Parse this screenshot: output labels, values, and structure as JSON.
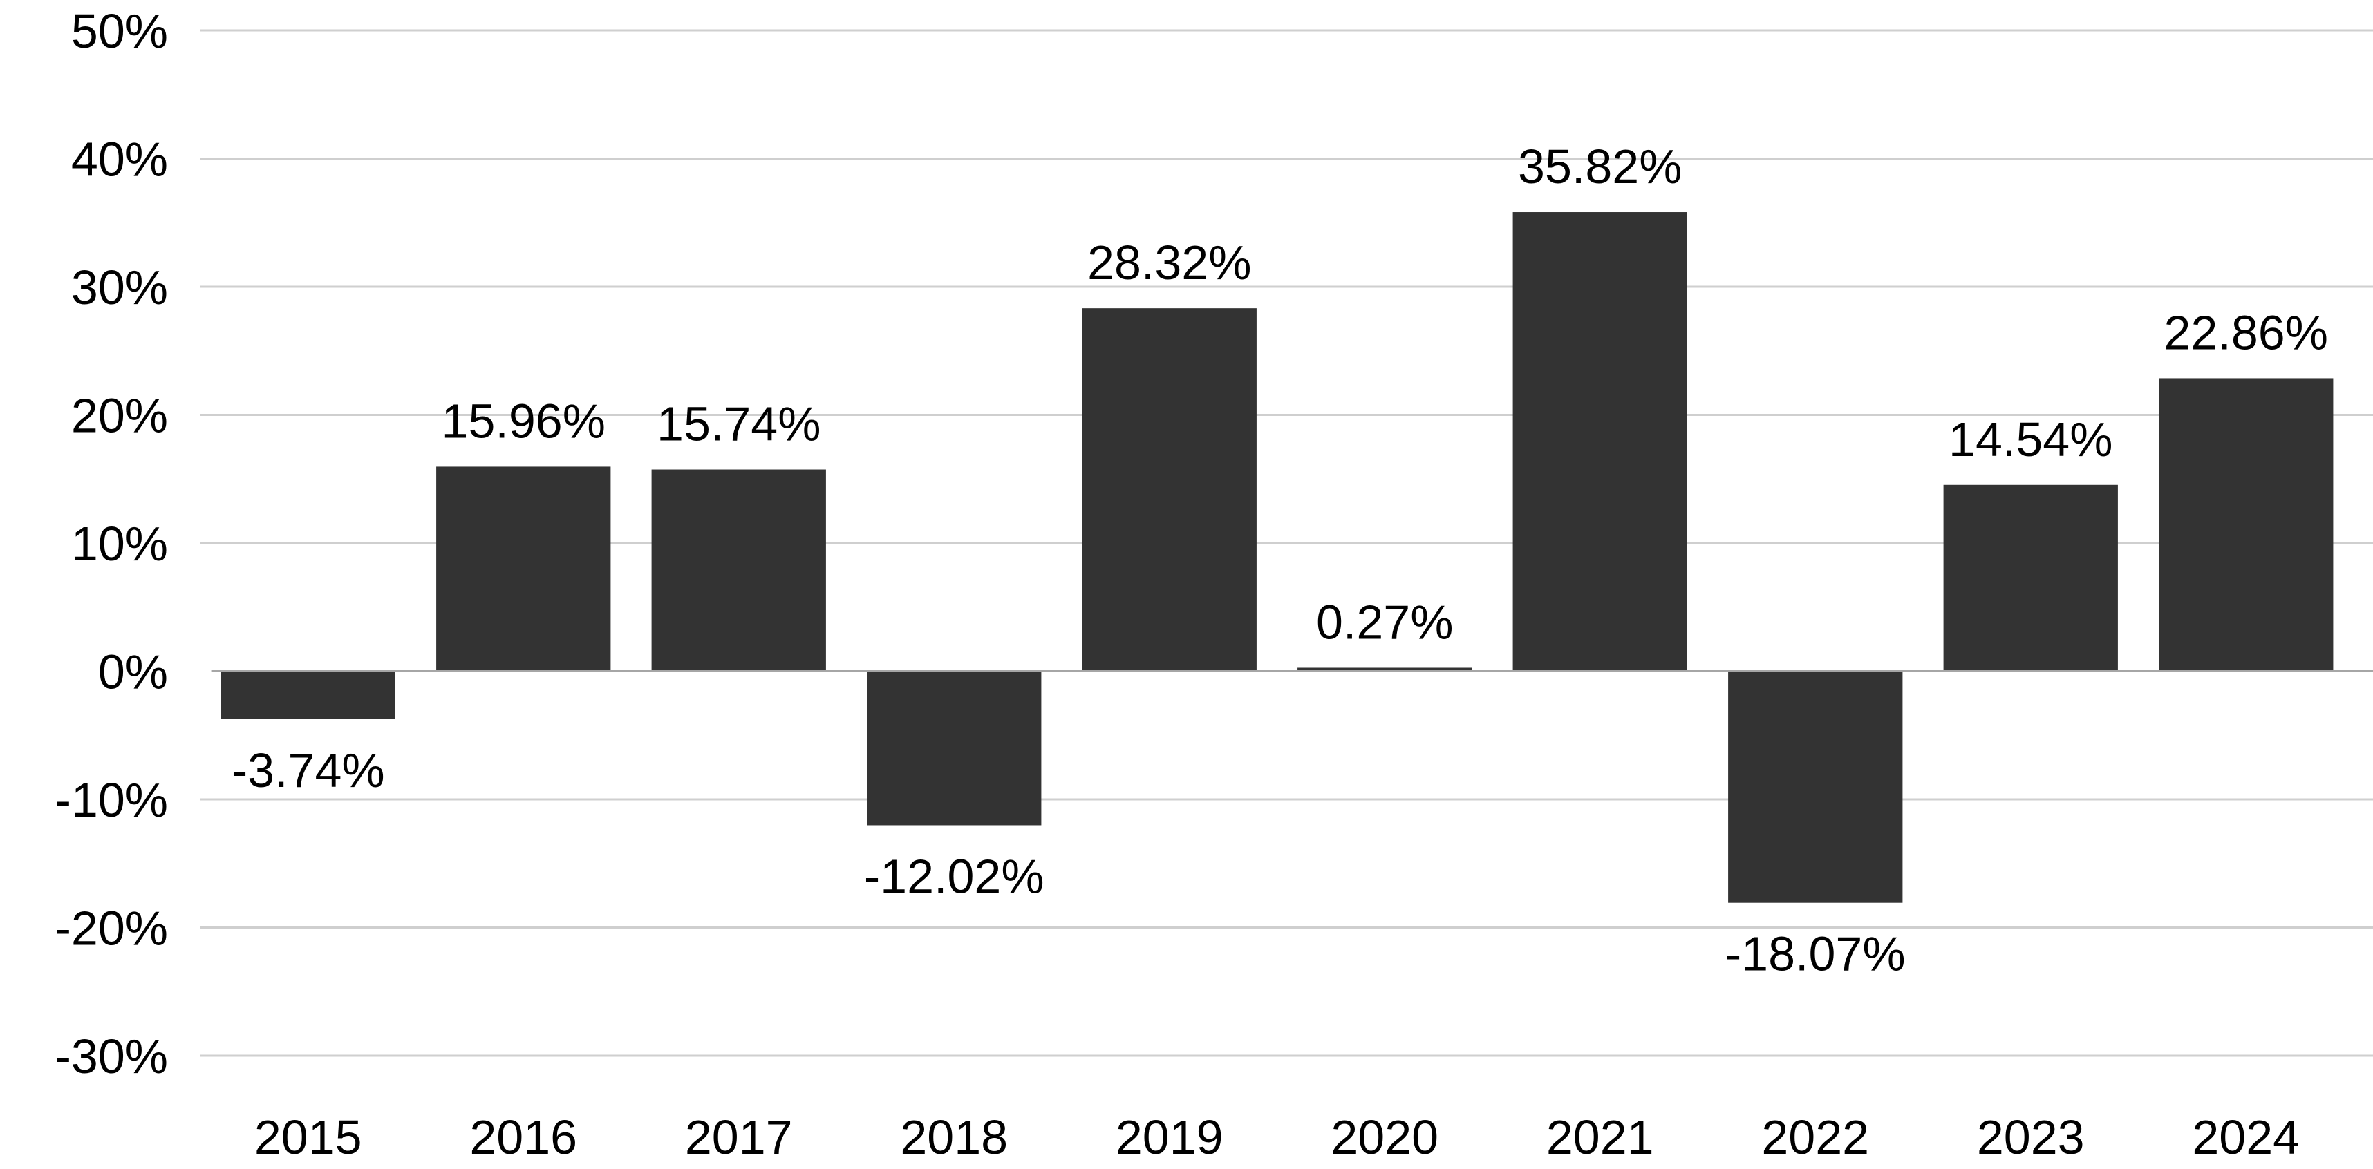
{
  "chart_data": {
    "type": "bar",
    "categories": [
      "2015",
      "2016",
      "2017",
      "2018",
      "2019",
      "2020",
      "2021",
      "2022",
      "2023",
      "2024"
    ],
    "values": [
      -3.74,
      15.96,
      15.74,
      -12.02,
      28.32,
      0.27,
      35.82,
      -18.07,
      14.54,
      22.86
    ],
    "data_labels": [
      "-3.74%",
      "15.96%",
      "15.74%",
      "-12.02%",
      "28.32%",
      "0.27%",
      "35.82%",
      "-18.07%",
      "14.54%",
      "22.86%"
    ],
    "y_ticks": [
      50,
      40,
      30,
      20,
      10,
      0,
      -10,
      -20,
      -30
    ],
    "y_tick_labels": [
      "50%",
      "40%",
      "30%",
      "20%",
      "10%",
      "0%",
      "-10%",
      "-20%",
      "-30%"
    ],
    "ylim": [
      -30,
      50
    ],
    "grid": true,
    "legend": "none",
    "bar_color": "#333333",
    "title": "",
    "xlabel": "",
    "ylabel": ""
  }
}
